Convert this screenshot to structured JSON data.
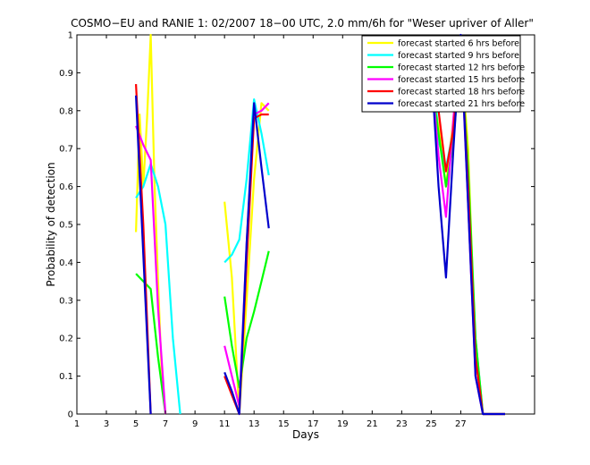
{
  "chart_data": {
    "type": "line",
    "title": "COSMO−EU and RANIE 1: 02/2007 18−00 UTC, 2.0 mm/6h for \"Weser upriver of Aller\"",
    "xlabel": "Days",
    "ylabel": "Probability of detection",
    "xlim": [
      1,
      32
    ],
    "ylim": [
      0,
      1
    ],
    "x_ticks": [
      1,
      3,
      5,
      7,
      9,
      11,
      13,
      15,
      17,
      19,
      21,
      23,
      25,
      27
    ],
    "x_tick_labels": [
      "1",
      "3",
      "5",
      "7",
      "9",
      "11",
      "13",
      "15",
      "17",
      "19",
      "21",
      "23",
      "25",
      "27"
    ],
    "y_ticks": [
      0,
      0.1,
      0.2,
      0.3,
      0.4,
      0.5,
      0.6,
      0.7,
      0.8,
      0.9,
      1
    ],
    "y_tick_labels": [
      "0",
      "0.1",
      "0.2",
      "0.3",
      "0.4",
      "0.5",
      "0.6",
      "0.7",
      "0.8",
      "0.9",
      "1"
    ],
    "grid": false,
    "legend_position": "top-right",
    "series": [
      {
        "name": "forecast started 6 hrs before",
        "color": "#ffff00",
        "segments": [
          [
            [
              5,
              0.48
            ],
            [
              5.25,
              0.79
            ],
            [
              5.5,
              0.6
            ],
            [
              5.75,
              0.78
            ],
            [
              6,
              1.0
            ],
            [
              6.25,
              0.62
            ],
            [
              6.5,
              0.35
            ],
            [
              6.75,
              0.1
            ],
            [
              7,
              0.0
            ]
          ],
          [
            [
              11,
              0.56
            ],
            [
              11.5,
              0.36
            ],
            [
              12,
              0.0
            ],
            [
              12.5,
              0.3
            ],
            [
              13,
              0.62
            ],
            [
              13.5,
              0.82
            ],
            [
              14,
              0.8
            ]
          ],
          [
            [
              25,
              0.86
            ],
            [
              25.5,
              0.76
            ],
            [
              26,
              0.6
            ],
            [
              26.5,
              0.78
            ],
            [
              27,
              0.96
            ],
            [
              27.5,
              0.7
            ],
            [
              28,
              0.15
            ],
            [
              28.5,
              0.0
            ],
            [
              29,
              0.0
            ],
            [
              30,
              0.0
            ]
          ]
        ]
      },
      {
        "name": "forecast started 9 hrs before",
        "color": "#00ffff",
        "segments": [
          [
            [
              5,
              0.57
            ],
            [
              5.5,
              0.6
            ],
            [
              6,
              0.66
            ],
            [
              6.5,
              0.6
            ],
            [
              7,
              0.5
            ],
            [
              7.5,
              0.2
            ],
            [
              8,
              0.0
            ]
          ],
          [
            [
              11,
              0.4
            ],
            [
              11.5,
              0.42
            ],
            [
              12,
              0.46
            ],
            [
              12.5,
              0.62
            ],
            [
              13,
              0.83
            ],
            [
              13.5,
              0.74
            ],
            [
              14,
              0.63
            ]
          ],
          [
            [
              25,
              0.99
            ],
            [
              25.5,
              0.72
            ],
            [
              26,
              0.65
            ],
            [
              26.5,
              0.75
            ],
            [
              27,
              0.96
            ],
            [
              27.5,
              0.6
            ],
            [
              28,
              0.2
            ],
            [
              28.5,
              0.0
            ],
            [
              29,
              0.0
            ],
            [
              30,
              0.0
            ]
          ]
        ]
      },
      {
        "name": "forecast started 12 hrs before",
        "color": "#00ff00",
        "segments": [
          [
            [
              5,
              0.37
            ],
            [
              5.5,
              0.35
            ],
            [
              6,
              0.33
            ],
            [
              6.5,
              0.15
            ],
            [
              7,
              0.0
            ]
          ],
          [
            [
              11,
              0.31
            ],
            [
              11.5,
              0.18
            ],
            [
              12,
              0.07
            ],
            [
              12.5,
              0.2
            ],
            [
              13,
              0.27
            ],
            [
              13.5,
              0.35
            ],
            [
              14,
              0.43
            ]
          ],
          [
            [
              25,
              0.88
            ],
            [
              25.5,
              0.74
            ],
            [
              26,
              0.6
            ],
            [
              26.5,
              0.72
            ],
            [
              27,
              0.96
            ],
            [
              27.5,
              0.65
            ],
            [
              28,
              0.2
            ],
            [
              28.5,
              0.0
            ],
            [
              29,
              0.0
            ],
            [
              30,
              0.0
            ]
          ]
        ]
      },
      {
        "name": "forecast started 15 hrs before",
        "color": "#ff00ff",
        "segments": [
          [
            [
              5,
              0.76
            ],
            [
              5.5,
              0.71
            ],
            [
              6,
              0.67
            ],
            [
              6.5,
              0.28
            ],
            [
              7,
              0.0
            ]
          ],
          [
            [
              11,
              0.18
            ],
            [
              11.5,
              0.1
            ],
            [
              12,
              0.02
            ],
            [
              12.5,
              0.45
            ],
            [
              13,
              0.79
            ],
            [
              13.5,
              0.8
            ],
            [
              14,
              0.82
            ]
          ],
          [
            [
              25,
              0.9
            ],
            [
              25.5,
              0.68
            ],
            [
              26,
              0.52
            ],
            [
              26.5,
              0.78
            ],
            [
              27,
              0.99
            ],
            [
              27.5,
              0.55
            ],
            [
              28,
              0.1
            ],
            [
              28.5,
              0.0
            ],
            [
              29,
              0.0
            ],
            [
              30,
              0.0
            ]
          ]
        ]
      },
      {
        "name": "forecast started 18 hrs before",
        "color": "#ff0000",
        "segments": [
          [
            [
              5,
              0.87
            ],
            [
              5.5,
              0.5
            ],
            [
              6,
              0.0
            ]
          ],
          [
            [
              11,
              0.1
            ],
            [
              11.5,
              0.05
            ],
            [
              12,
              0.0
            ],
            [
              12.5,
              0.4
            ],
            [
              13,
              0.78
            ],
            [
              13.5,
              0.79
            ],
            [
              14,
              0.79
            ]
          ],
          [
            [
              25,
              0.87
            ],
            [
              25.5,
              0.8
            ],
            [
              26,
              0.64
            ],
            [
              26.5,
              0.75
            ],
            [
              27,
              0.98
            ],
            [
              27.5,
              0.6
            ],
            [
              28,
              0.15
            ],
            [
              28.5,
              0.0
            ],
            [
              29,
              0.0
            ],
            [
              30,
              0.0
            ]
          ]
        ]
      },
      {
        "name": "forecast started 21 hrs before",
        "color": "#0000cc",
        "segments": [
          [
            [
              5,
              0.84
            ],
            [
              5.5,
              0.42
            ],
            [
              6,
              0.0
            ]
          ],
          [
            [
              11,
              0.11
            ],
            [
              11.5,
              0.06
            ],
            [
              12,
              0.0
            ],
            [
              12.5,
              0.45
            ],
            [
              13,
              0.82
            ],
            [
              13.5,
              0.65
            ],
            [
              14,
              0.49
            ]
          ],
          [
            [
              25,
              0.92
            ],
            [
              25.5,
              0.6
            ],
            [
              26,
              0.36
            ],
            [
              26.5,
              0.7
            ],
            [
              27,
              1.0
            ],
            [
              27.5,
              0.55
            ],
            [
              28,
              0.1
            ],
            [
              28.5,
              0.0
            ],
            [
              29,
              0.0
            ],
            [
              30,
              0.0
            ]
          ]
        ]
      }
    ]
  }
}
